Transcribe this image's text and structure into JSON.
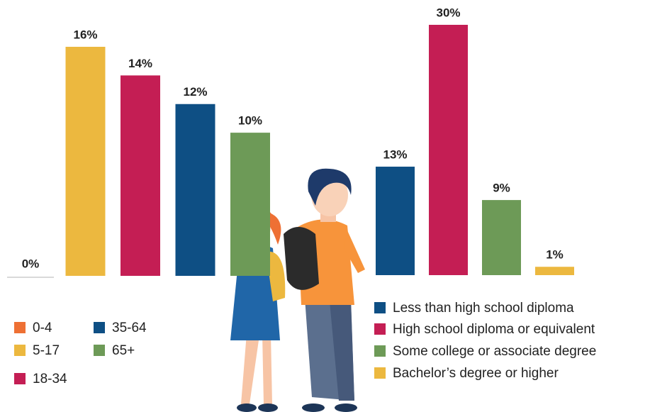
{
  "chart_data": [
    {
      "type": "bar",
      "categories": [
        "0-4",
        "5-17",
        "18-34",
        "35-64",
        "65+"
      ],
      "values": [
        0,
        16,
        14,
        12,
        10
      ],
      "value_labels": [
        "0%",
        "16%",
        "14%",
        "12%",
        "10%"
      ],
      "colors": [
        "#ee7034",
        "#ecb83f",
        "#c41e54",
        "#0e4f84",
        "#6d9a57"
      ]
    },
    {
      "type": "bar",
      "categories": [
        "Less than high school diploma",
        "High school diploma or equivalent",
        "Some college or associate degree",
        "Bachelor’s degree or higher"
      ],
      "values": [
        13,
        30,
        9,
        1
      ],
      "value_labels": [
        "13%",
        "30%",
        "9%",
        "1%"
      ],
      "colors": [
        "#0e4f84",
        "#c41e54",
        "#6d9a57",
        "#ecb83f"
      ]
    }
  ]
}
